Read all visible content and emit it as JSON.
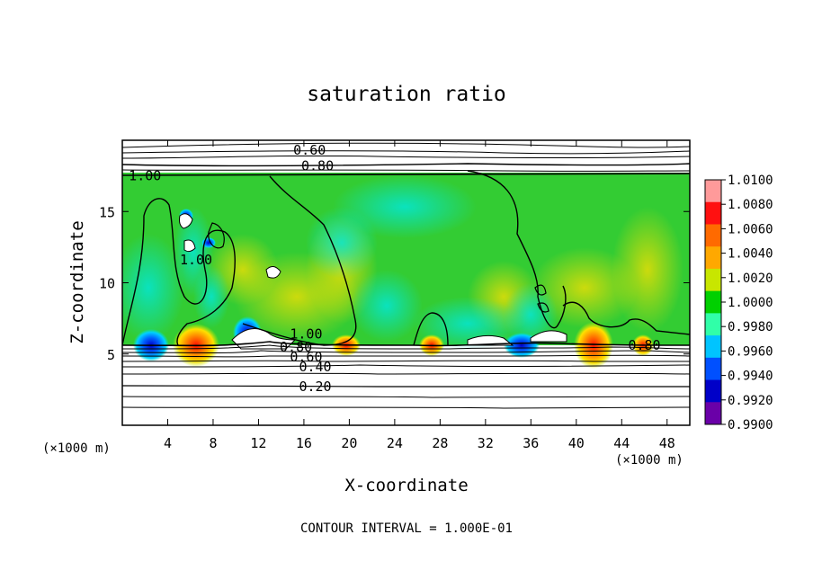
{
  "chart_data": {
    "type": "heatmap",
    "title": "saturation ratio",
    "xlabel": "X-coordinate",
    "ylabel": "Z-coordinate",
    "x_unit_label": "(×1000 m)",
    "z_unit_label": "(×1000 m)",
    "footer": "CONTOUR INTERVAL = 1.000E-01",
    "xlim": [
      0,
      50
    ],
    "ylim": [
      0,
      20
    ],
    "x_ticks": [
      4,
      8,
      12,
      16,
      20,
      24,
      28,
      32,
      36,
      40,
      44,
      48
    ],
    "x_tick_labels": [
      "4",
      "8",
      "12",
      "16",
      "20",
      "24",
      "28",
      "32",
      "36",
      "40",
      "44",
      "48"
    ],
    "y_ticks": [
      5,
      10,
      15
    ],
    "y_tick_labels": [
      "5",
      "10",
      "15"
    ],
    "colorbar": {
      "min": 0.99,
      "max": 1.01,
      "labels": [
        "1.0100",
        "1.0080",
        "1.0060",
        "1.0040",
        "1.0020",
        "1.0000",
        "0.9980",
        "0.9960",
        "0.9940",
        "0.9920",
        "0.9900"
      ],
      "colors": [
        "#ff9a9a",
        "#ff1010",
        "#ff6a00",
        "#ffa800",
        "#c8e600",
        "#00d000",
        "#30ffa8",
        "#00c4ff",
        "#0050ff",
        "#0000c8",
        "#6a00a8"
      ]
    },
    "field_colors": {
      "near_one": "#33cc33",
      "moist": "#88dd22",
      "dry": "#00e0d0"
    },
    "contour_labels": [
      {
        "text": "0.60",
        "x": 16.5,
        "z": 19.3
      },
      {
        "text": "0.80",
        "x": 17.2,
        "z": 18.2
      },
      {
        "text": "1.00",
        "x": 2.0,
        "z": 17.5
      },
      {
        "text": "1.00",
        "x": 6.5,
        "z": 11.6
      },
      {
        "text": "1.00",
        "x": 16.2,
        "z": 6.4
      },
      {
        "text": "0.80",
        "x": 15.3,
        "z": 5.5
      },
      {
        "text": "0.60",
        "x": 16.2,
        "z": 4.8
      },
      {
        "text": "0.40",
        "x": 17.0,
        "z": 4.1
      },
      {
        "text": "0.20",
        "x": 17.0,
        "z": 2.7
      },
      {
        "text": "0.80",
        "x": 46.0,
        "z": 5.6
      }
    ]
  }
}
